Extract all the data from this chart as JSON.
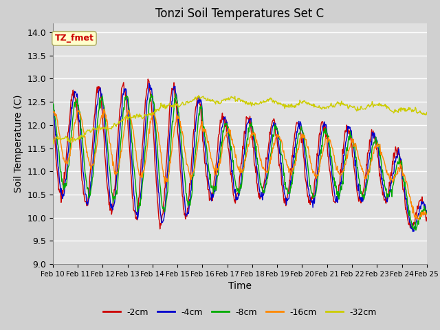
{
  "title": "Tonzi Soil Temperatures Set C",
  "xlabel": "Time",
  "ylabel": "Soil Temperature (C)",
  "ylim": [
    9.0,
    14.2
  ],
  "yticks": [
    9.0,
    9.5,
    10.0,
    10.5,
    11.0,
    11.5,
    12.0,
    12.5,
    13.0,
    13.5,
    14.0
  ],
  "x_labels": [
    "Feb 10",
    "Feb 11",
    "Feb 12",
    "Feb 13",
    "Feb 14",
    "Feb 15",
    "Feb 16",
    "Feb 17",
    "Feb 18",
    "Feb 19",
    "Feb 20",
    "Feb 21",
    "Feb 22",
    "Feb 23",
    "Feb 24",
    "Feb 25"
  ],
  "colors": {
    "-2cm": "#cc0000",
    "-4cm": "#0000cc",
    "-8cm": "#00aa00",
    "-16cm": "#ff8800",
    "-32cm": "#cccc00"
  },
  "legend_labels": [
    "-2cm",
    "-4cm",
    "-8cm",
    "-16cm",
    "-32cm"
  ],
  "annotation_text": "TZ_fmet",
  "annotation_color": "#cc0000",
  "annotation_bg": "#ffffcc",
  "fig_bg": "#d0d0d0",
  "plot_bg": "#e0e0e0",
  "grid_color": "#ffffff",
  "n_points": 720
}
